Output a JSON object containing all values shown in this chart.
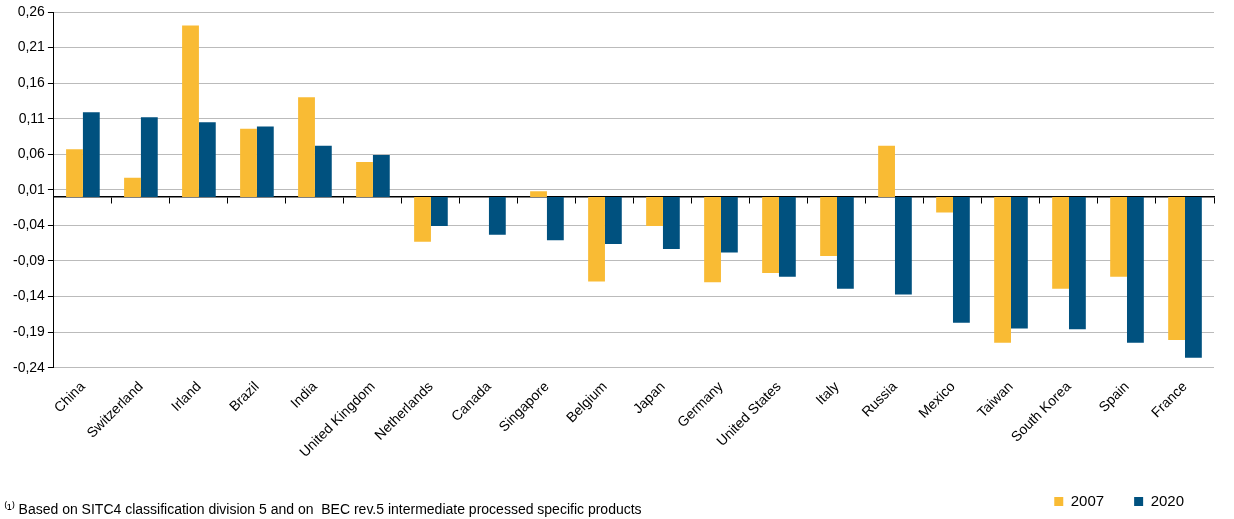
{
  "chart_data": {
    "type": "bar",
    "categories": [
      "China",
      "Switzerland",
      "Irland",
      "Brazil",
      "India",
      "United Kingdom",
      "Netherlands",
      "Canada",
      "Singapore",
      "Belgium",
      "Japan",
      "Germany",
      "United States",
      "Italy",
      "Russia",
      "Mexico",
      "Taiwan",
      "South Korea",
      "Spain",
      "France"
    ],
    "series": [
      {
        "name": "2007",
        "color": "#f9bb34",
        "values": [
          0.067,
          0.027,
          0.241,
          0.096,
          0.14,
          0.049,
          -0.063,
          0,
          0.008,
          -0.119,
          -0.041,
          -0.12,
          -0.107,
          -0.083,
          0.072,
          -0.022,
          -0.205,
          -0.129,
          -0.112,
          -0.201
        ]
      },
      {
        "name": "2020",
        "color": "#00517f",
        "values": [
          0.119,
          0.112,
          0.105,
          0.099,
          0.072,
          0.059,
          -0.041,
          -0.053,
          -0.061,
          -0.066,
          -0.073,
          -0.078,
          -0.112,
          -0.129,
          -0.137,
          -0.177,
          -0.185,
          -0.186,
          -0.205,
          -0.226
        ]
      }
    ],
    "ylim": [
      -0.24,
      0.26
    ],
    "yticks": [
      {
        "value": -0.24,
        "label": "-0,24"
      },
      {
        "value": -0.19,
        "label": "-0,19"
      },
      {
        "value": -0.14,
        "label": "-0,14"
      },
      {
        "value": -0.09,
        "label": "-0,09"
      },
      {
        "value": -0.04,
        "label": "-0,04"
      },
      {
        "value": 0.01,
        "label": "0,01"
      },
      {
        "value": 0.06,
        "label": "0,06"
      },
      {
        "value": 0.11,
        "label": "0,11"
      },
      {
        "value": 0.16,
        "label": "0,16"
      },
      {
        "value": 0.21,
        "label": "0,21"
      },
      {
        "value": 0.26,
        "label": "0,26"
      }
    ],
    "grid": "y",
    "legend": "bottom right",
    "annotations": [
      "⁽¹⁾ Based on SITC4 classification division 5 and on  BEC rev.5 intermediate processed specific products"
    ]
  }
}
